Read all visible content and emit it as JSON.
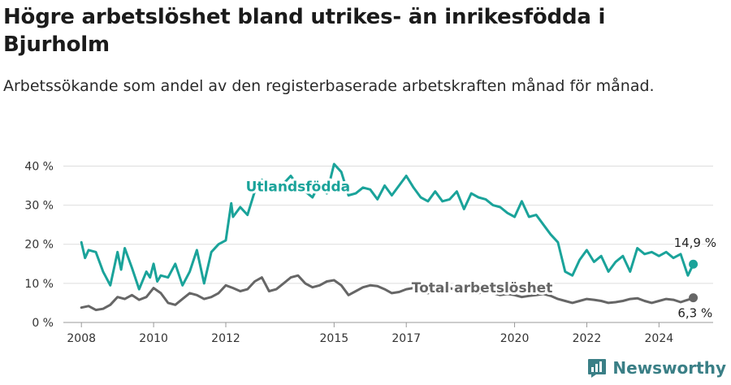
{
  "title": "Högre arbetslöshet bland utrikes- än inrikesfödda i Bjurholm",
  "subtitle": "Arbetssökande som andel av den registerbaserade arbetskraften månad för månad.",
  "brand": "Newsworthy",
  "colors": {
    "utlandsfodda": "#1aa39a",
    "total": "#666666",
    "grid": "#dedede",
    "brand": "#3a7f86"
  },
  "chart_data": {
    "type": "line",
    "title": "Högre arbetslöshet bland utrikes- än inrikesfödda i Bjurholm",
    "subtitle": "Arbetssökande som andel av den registerbaserade arbetskraften månad för månad.",
    "ylim": [
      0,
      43
    ],
    "xlim": [
      2007.5,
      2025.5
    ],
    "yticks": [
      0,
      10,
      20,
      30,
      40
    ],
    "ytick_labels": [
      "0 %",
      "10 %",
      "20 %",
      "30 %",
      "40 %"
    ],
    "xticks": [
      2008,
      2010,
      2012,
      2015,
      2017,
      2020,
      2022,
      2024
    ],
    "xtick_labels": [
      "2008",
      "2010",
      "2012",
      "2015",
      "2017",
      "2020",
      "2022",
      "2024"
    ],
    "grid": true,
    "series": [
      {
        "name": "Utlandsfödda",
        "color": "#1aa39a",
        "end_label": "14,9 %",
        "x": [
          2008.0,
          2008.1,
          2008.2,
          2008.4,
          2008.6,
          2008.8,
          2009.0,
          2009.1,
          2009.2,
          2009.4,
          2009.6,
          2009.8,
          2009.9,
          2010.0,
          2010.1,
          2010.2,
          2010.4,
          2010.6,
          2010.8,
          2011.0,
          2011.2,
          2011.4,
          2011.6,
          2011.8,
          2012.0,
          2012.15,
          2012.2,
          2012.4,
          2012.6,
          2012.8,
          2013.0,
          2013.2,
          2013.4,
          2013.6,
          2013.8,
          2014.0,
          2014.2,
          2014.4,
          2014.6,
          2014.8,
          2015.0,
          2015.2,
          2015.4,
          2015.6,
          2015.8,
          2016.0,
          2016.2,
          2016.4,
          2016.6,
          2016.8,
          2017.0,
          2017.2,
          2017.4,
          2017.6,
          2017.8,
          2018.0,
          2018.2,
          2018.4,
          2018.6,
          2018.8,
          2019.0,
          2019.2,
          2019.4,
          2019.6,
          2019.8,
          2020.0,
          2020.2,
          2020.4,
          2020.6,
          2020.8,
          2021.0,
          2021.2,
          2021.4,
          2021.6,
          2021.8,
          2022.0,
          2022.2,
          2022.4,
          2022.6,
          2022.8,
          2023.0,
          2023.2,
          2023.4,
          2023.6,
          2023.8,
          2024.0,
          2024.2,
          2024.4,
          2024.6,
          2024.8,
          2024.95
        ],
        "values": [
          20.5,
          16.5,
          18.5,
          18.0,
          13.0,
          9.5,
          18.0,
          13.5,
          19.0,
          14.0,
          8.5,
          13.0,
          11.5,
          15.0,
          10.5,
          12.0,
          11.5,
          15.0,
          9.5,
          13.0,
          18.5,
          10.0,
          18.0,
          20.0,
          21.0,
          30.5,
          27.0,
          29.5,
          27.5,
          33.5,
          36.5,
          34.0,
          33.5,
          35.5,
          37.5,
          35.0,
          33.5,
          32.0,
          35.5,
          33.0,
          40.5,
          38.5,
          32.5,
          33.0,
          34.5,
          34.0,
          31.5,
          35.0,
          32.5,
          35.0,
          37.5,
          34.5,
          32.0,
          31.0,
          33.5,
          31.0,
          31.5,
          33.5,
          29.0,
          33.0,
          32.0,
          31.5,
          30.0,
          29.5,
          28.0,
          27.0,
          31.0,
          27.0,
          27.5,
          25.0,
          22.5,
          20.5,
          13.0,
          12.0,
          16.0,
          18.5,
          15.5,
          17.0,
          13.0,
          15.5,
          17.0,
          13.0,
          19.0,
          17.5,
          18.0,
          17.0,
          18.0,
          16.5,
          17.5,
          12.0,
          14.9
        ]
      },
      {
        "name": "Total arbetslöshet",
        "color": "#666666",
        "end_label": "6,3 %",
        "x": [
          2008.0,
          2008.2,
          2008.4,
          2008.6,
          2008.8,
          2009.0,
          2009.2,
          2009.4,
          2009.6,
          2009.8,
          2010.0,
          2010.2,
          2010.4,
          2010.6,
          2010.8,
          2011.0,
          2011.2,
          2011.4,
          2011.6,
          2011.8,
          2012.0,
          2012.2,
          2012.4,
          2012.6,
          2012.8,
          2013.0,
          2013.2,
          2013.4,
          2013.6,
          2013.8,
          2014.0,
          2014.2,
          2014.4,
          2014.6,
          2014.8,
          2015.0,
          2015.2,
          2015.4,
          2015.6,
          2015.8,
          2016.0,
          2016.2,
          2016.4,
          2016.6,
          2016.8,
          2017.0,
          2017.2,
          2017.4,
          2017.6,
          2017.8,
          2018.0,
          2018.2,
          2018.4,
          2018.6,
          2018.8,
          2019.0,
          2019.2,
          2019.4,
          2019.6,
          2019.8,
          2020.0,
          2020.2,
          2020.4,
          2020.6,
          2020.8,
          2021.0,
          2021.2,
          2021.4,
          2021.6,
          2021.8,
          2022.0,
          2022.2,
          2022.4,
          2022.6,
          2022.8,
          2023.0,
          2023.2,
          2023.4,
          2023.6,
          2023.8,
          2024.0,
          2024.2,
          2024.4,
          2024.6,
          2024.8,
          2024.95
        ],
        "values": [
          3.8,
          4.2,
          3.2,
          3.5,
          4.5,
          6.5,
          6.0,
          7.0,
          5.8,
          6.5,
          8.8,
          7.5,
          5.0,
          4.5,
          6.0,
          7.5,
          7.0,
          6.0,
          6.5,
          7.5,
          9.5,
          8.8,
          8.0,
          8.5,
          10.5,
          11.5,
          8.0,
          8.5,
          10.0,
          11.5,
          12.0,
          10.0,
          9.0,
          9.5,
          10.5,
          10.8,
          9.5,
          7.0,
          8.0,
          9.0,
          9.5,
          9.3,
          8.5,
          7.5,
          7.8,
          8.5,
          8.8,
          7.8,
          7.5,
          8.0,
          8.5,
          8.8,
          8.2,
          7.5,
          7.8,
          7.5,
          8.0,
          7.5,
          7.0,
          7.3,
          7.0,
          6.5,
          6.8,
          7.0,
          7.3,
          6.8,
          6.0,
          5.5,
          5.0,
          5.5,
          6.0,
          5.8,
          5.5,
          5.0,
          5.2,
          5.5,
          6.0,
          6.2,
          5.5,
          5.0,
          5.5,
          6.0,
          5.8,
          5.2,
          5.8,
          6.3
        ]
      }
    ]
  }
}
